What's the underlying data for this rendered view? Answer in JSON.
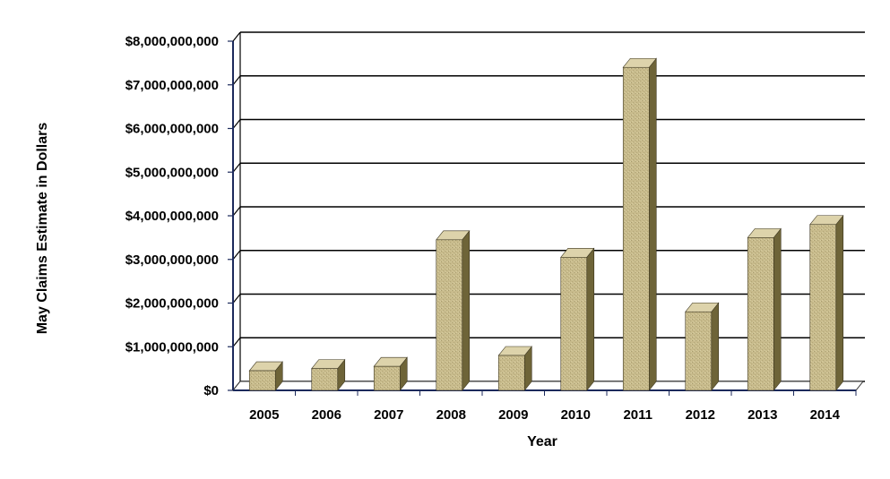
{
  "chart_data": {
    "type": "bar",
    "title": "",
    "xlabel": "Year",
    "ylabel": "May Claims Estimate in Dollars",
    "categories": [
      "2005",
      "2006",
      "2007",
      "2008",
      "2009",
      "2010",
      "2011",
      "2012",
      "2013",
      "2014"
    ],
    "series": [
      {
        "values": [
          450000000,
          500000000,
          550000000,
          3450000000,
          800000000,
          3050000000,
          7400000000,
          1800000000,
          3500000000,
          3800000000
        ]
      }
    ],
    "ylim": [
      0,
      8000000000
    ],
    "ytick_values": [
      0,
      1000000000,
      2000000000,
      3000000000,
      4000000000,
      5000000000,
      6000000000,
      7000000000,
      8000000000
    ],
    "ytick_labels": [
      "$0",
      "$1,000,000,000",
      "$2,000,000,000",
      "$3,000,000,000",
      "$4,000,000,000",
      "$5,000,000,000",
      "$6,000,000,000",
      "$7,000,000,000",
      "$8,000,000,000"
    ],
    "grid": true,
    "legend": "none",
    "colors": {
      "bar_face": "#c8bb8c",
      "bar_side": "#6e6438",
      "bar_top": "#ddd3ab",
      "grid": "#000000",
      "axis": "#1c2a5c"
    }
  }
}
